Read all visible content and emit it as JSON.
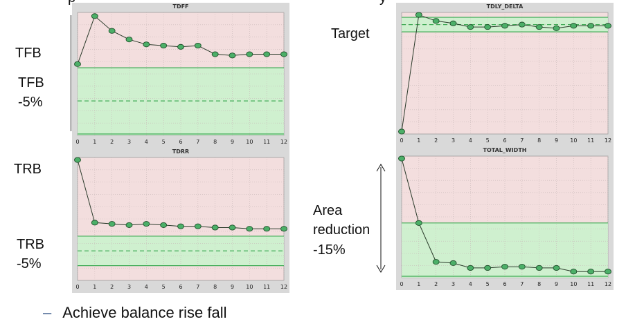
{
  "top_cut_text": "p",
  "top_cut_text_right": "y",
  "labels": {
    "tfb": "TFB",
    "tfb_minus": "TFB",
    "tfb_pct": "-5%",
    "target": "Target",
    "trb": "TRB",
    "trb_minus": "TRB",
    "trb_pct": "-5%",
    "area": "Area",
    "reduction": "reduction",
    "area_pct": "-15%"
  },
  "bullet": {
    "dash": "–",
    "text": "Achieve balance rise fall"
  },
  "colors": {
    "panel_bg": "#d9d9d9",
    "plot_red": "#f3dede",
    "plot_green": "#cff0cf",
    "band_line": "#3faa55",
    "series_line": "#2a3a2a",
    "marker_fill": "#4caf68",
    "marker_stroke": "#1f4f2a"
  },
  "chart_data": [
    {
      "id": "tdff",
      "type": "line",
      "title": "TDFF",
      "x": [
        0,
        1,
        2,
        3,
        4,
        5,
        6,
        7,
        8,
        9,
        10,
        11,
        12
      ],
      "values": [
        58,
        97,
        85,
        78,
        74,
        73,
        72,
        73,
        66,
        65,
        66,
        66,
        66
      ],
      "ylim": [
        0,
        100
      ],
      "band": {
        "upper": 55,
        "target": 28,
        "lower": 0
      },
      "grid": true
    },
    {
      "id": "tdly_delta",
      "type": "line",
      "title": "TDLY_DELTA",
      "x": [
        0,
        1,
        2,
        3,
        4,
        5,
        6,
        7,
        8,
        9,
        10,
        11,
        12
      ],
      "values": [
        2,
        98,
        93,
        91,
        88,
        88,
        89,
        90,
        88,
        87,
        89,
        89,
        89
      ],
      "ylim": [
        0,
        100
      ],
      "band": {
        "upper": 96,
        "target": 90,
        "lower": 84
      },
      "grid": true
    },
    {
      "id": "tdrr",
      "type": "line",
      "title": "TDRR",
      "x": [
        0,
        1,
        2,
        3,
        4,
        5,
        6,
        7,
        8,
        9,
        10,
        11,
        12
      ],
      "values": [
        98,
        47,
        46,
        45,
        46,
        45,
        44,
        44,
        43,
        43,
        42,
        42,
        42
      ],
      "ylim": [
        0,
        100
      ],
      "band": {
        "upper": 36,
        "target": 24,
        "lower": 12
      },
      "grid": true
    },
    {
      "id": "total_width",
      "type": "line",
      "title": "TOTAL_WIDTH",
      "x": [
        0,
        1,
        2,
        3,
        4,
        5,
        6,
        7,
        8,
        9,
        10,
        11,
        12
      ],
      "values": [
        98,
        45,
        13,
        12,
        8,
        8,
        9,
        9,
        8,
        8,
        5,
        5,
        5
      ],
      "ylim": [
        0,
        100
      ],
      "band": {
        "upper": 45,
        "target": null,
        "lower": 0
      },
      "grid": true
    }
  ]
}
